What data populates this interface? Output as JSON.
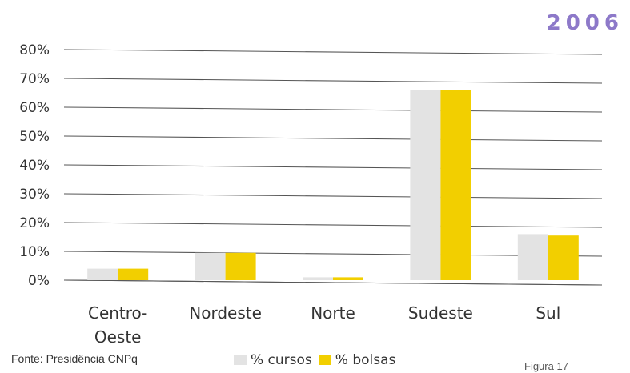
{
  "header": {
    "year": "2006"
  },
  "source": "Fonte: Presidência CNPq",
  "figure_label": "Figura 17",
  "colors": {
    "cursos": "#e3e3e3",
    "bolsas": "#f2cf00",
    "gridline": "#555555",
    "year": "#8d79c9"
  },
  "chart_data": {
    "type": "bar",
    "categories": [
      "Centro-Oeste",
      "Nordeste",
      "Norte",
      "Sudeste",
      "Sul"
    ],
    "category_labels": [
      [
        "Centro-",
        "Oeste"
      ],
      [
        "Nordeste"
      ],
      [
        "Norte"
      ],
      [
        "Sudeste"
      ],
      [
        "Sul"
      ]
    ],
    "series": [
      {
        "name": "% cursos",
        "values": [
          4,
          9.5,
          1,
          66,
          16
        ]
      },
      {
        "name": "% bolsas",
        "values": [
          4,
          9.5,
          1,
          66,
          15.5
        ]
      }
    ],
    "yticks": [
      "0%",
      "10%",
      "20%",
      "30%",
      "40%",
      "50%",
      "60%",
      "70%",
      "80%"
    ],
    "ylim": [
      0,
      80
    ],
    "grid": true,
    "legend_position": "bottom"
  }
}
